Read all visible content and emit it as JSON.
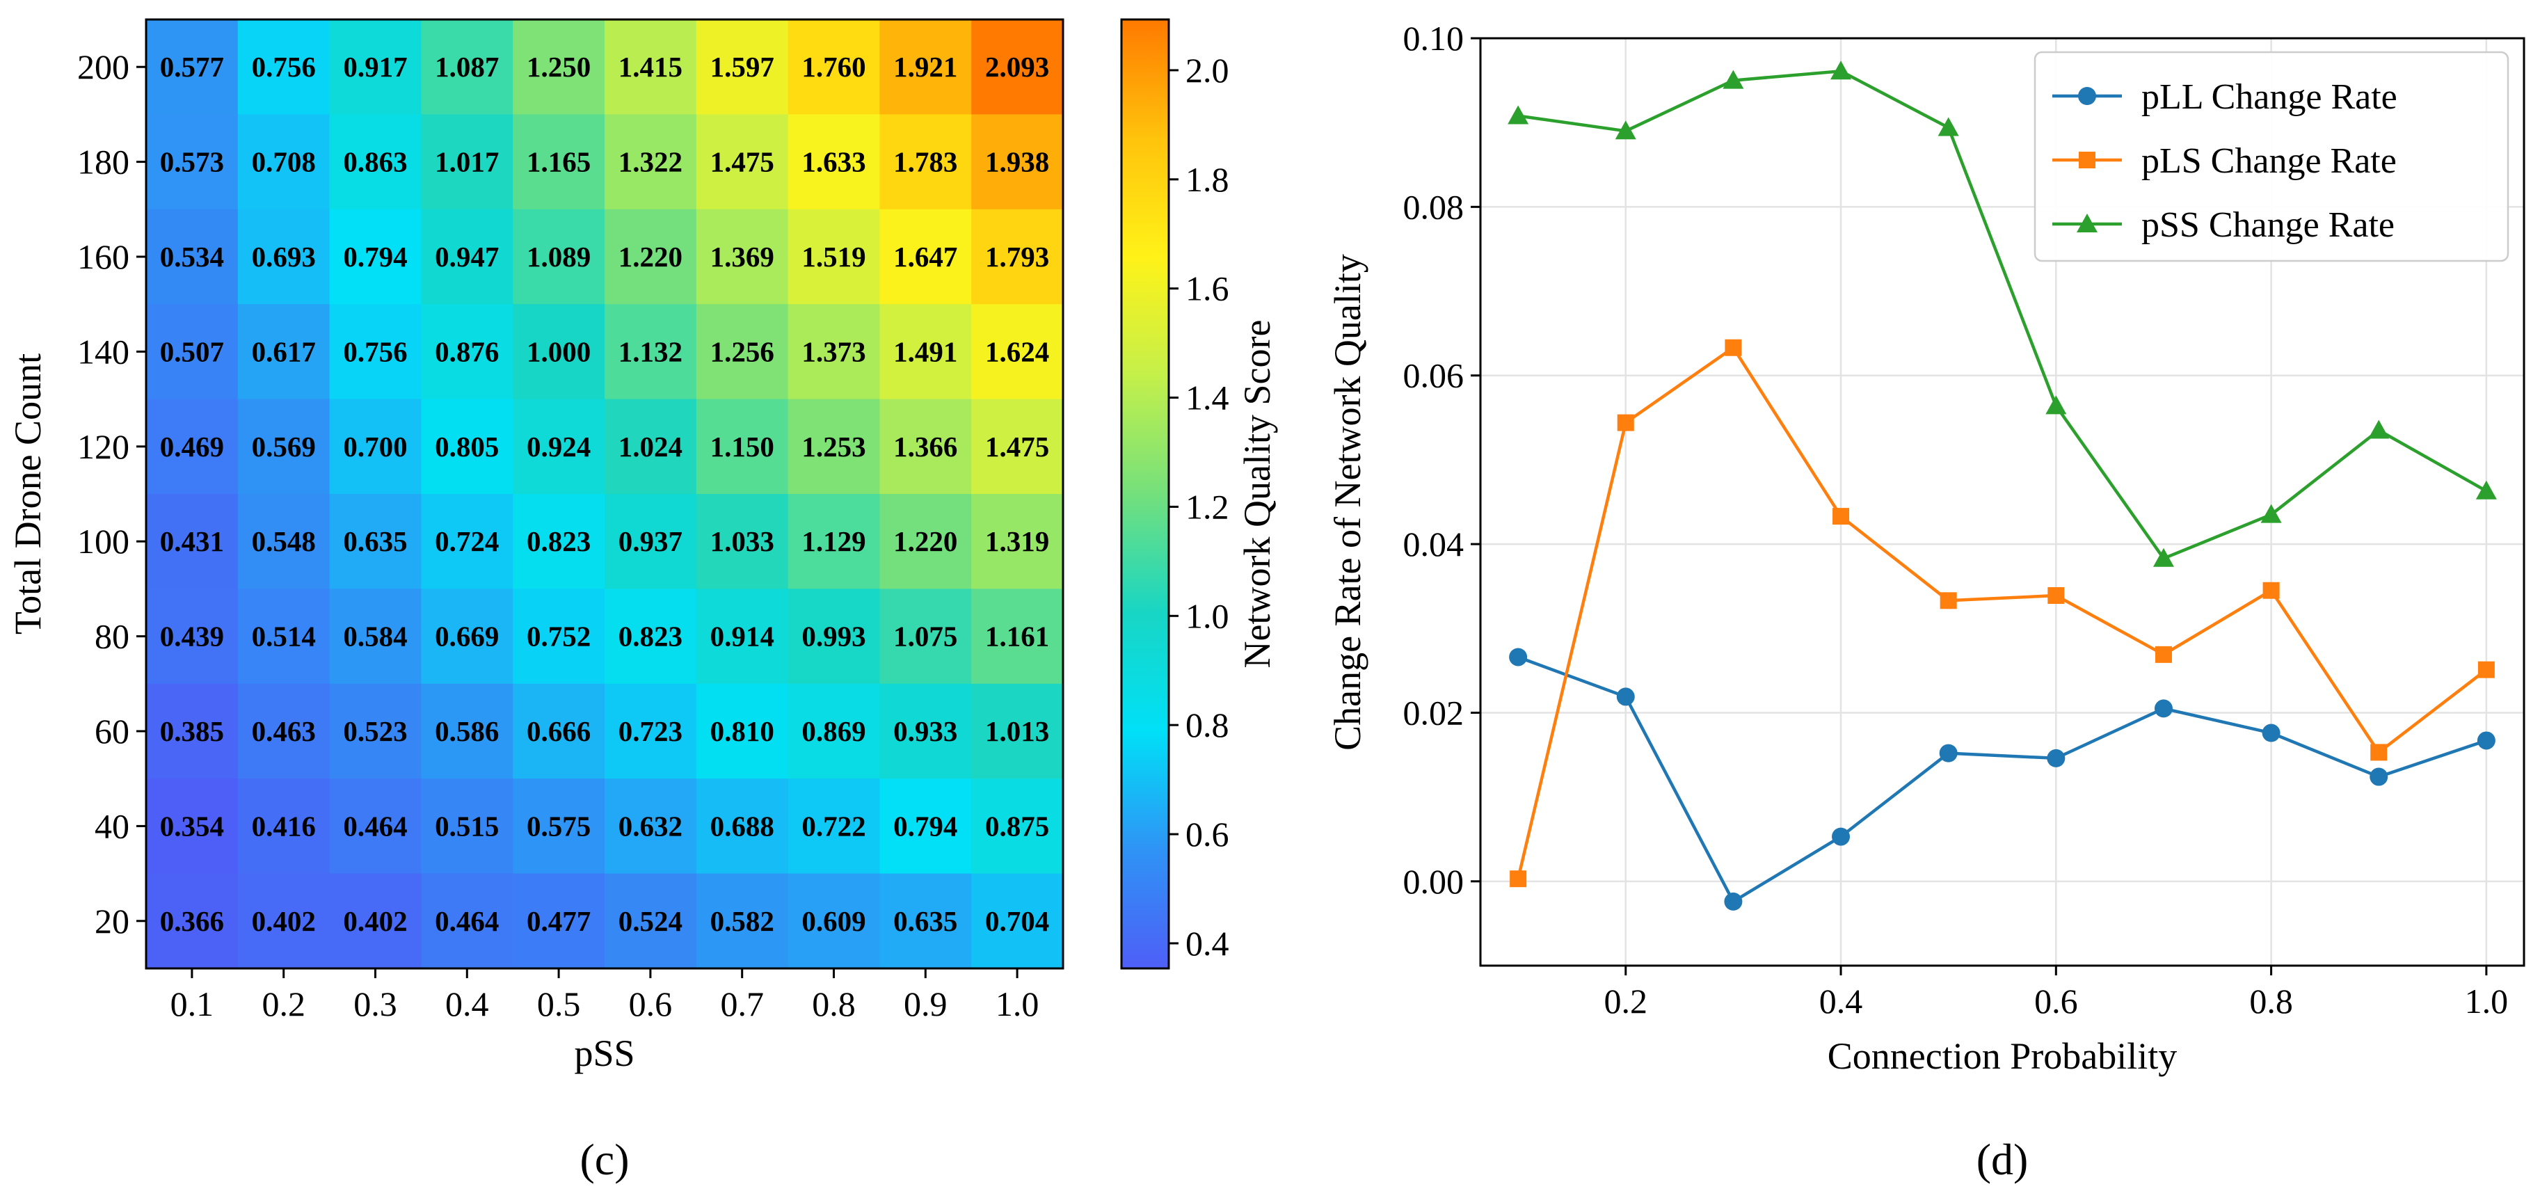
{
  "chart_data": [
    {
      "type": "heatmap",
      "panel_label": "(c)",
      "xlabel": "pSS",
      "ylabel": "Total Drone Count",
      "x": [
        "0.1",
        "0.2",
        "0.3",
        "0.4",
        "0.5",
        "0.6",
        "0.7",
        "0.8",
        "0.9",
        "1.0"
      ],
      "y": [
        "200",
        "180",
        "160",
        "140",
        "120",
        "100",
        "80",
        "60",
        "40",
        "20"
      ],
      "values": [
        [
          0.577,
          0.756,
          0.917,
          1.087,
          1.25,
          1.415,
          1.597,
          1.76,
          1.921,
          2.093
        ],
        [
          0.573,
          0.708,
          0.863,
          1.017,
          1.165,
          1.322,
          1.475,
          1.633,
          1.783,
          1.938
        ],
        [
          0.534,
          0.693,
          0.794,
          0.947,
          1.089,
          1.22,
          1.369,
          1.519,
          1.647,
          1.793
        ],
        [
          0.507,
          0.617,
          0.756,
          0.876,
          1.0,
          1.132,
          1.256,
          1.373,
          1.491,
          1.624
        ],
        [
          0.469,
          0.569,
          0.7,
          0.805,
          0.924,
          1.024,
          1.15,
          1.253,
          1.366,
          1.475
        ],
        [
          0.431,
          0.548,
          0.635,
          0.724,
          0.823,
          0.937,
          1.033,
          1.129,
          1.22,
          1.319
        ],
        [
          0.439,
          0.514,
          0.584,
          0.669,
          0.752,
          0.823,
          0.914,
          0.993,
          1.075,
          1.161
        ],
        [
          0.385,
          0.463,
          0.523,
          0.586,
          0.666,
          0.723,
          0.81,
          0.869,
          0.933,
          1.013
        ],
        [
          0.354,
          0.416,
          0.464,
          0.515,
          0.575,
          0.632,
          0.688,
          0.722,
          0.794,
          0.875
        ],
        [
          0.366,
          0.402,
          0.402,
          0.464,
          0.477,
          0.524,
          0.582,
          0.609,
          0.635,
          0.704
        ]
      ],
      "value_labels": [
        [
          "0.577",
          "0.756",
          "0.917",
          "1.087",
          "1.250",
          "1.415",
          "1.597",
          "1.760",
          "1.921",
          "2.093"
        ],
        [
          "0.573",
          "0.708",
          "0.863",
          "1.017",
          "1.165",
          "1.322",
          "1.475",
          "1.633",
          "1.783",
          "1.938"
        ],
        [
          "0.534",
          "0.693",
          "0.794",
          "0.947",
          "1.089",
          "1.220",
          "1.369",
          "1.519",
          "1.647",
          "1.793"
        ],
        [
          "0.507",
          "0.617",
          "0.756",
          "0.876",
          "1.000",
          "1.132",
          "1.256",
          "1.373",
          "1.491",
          "1.624"
        ],
        [
          "0.469",
          "0.569",
          "0.700",
          "0.805",
          "0.924",
          "1.024",
          "1.150",
          "1.253",
          "1.366",
          "1.475"
        ],
        [
          "0.431",
          "0.548",
          "0.635",
          "0.724",
          "0.823",
          "0.937",
          "1.033",
          "1.129",
          "1.220",
          "1.319"
        ],
        [
          "0.439",
          "0.514",
          "0.584",
          "0.669",
          "0.752",
          "0.823",
          "0.914",
          "0.993",
          "1.075",
          "1.161"
        ],
        [
          "0.385",
          "0.463",
          "0.523",
          "0.586",
          "0.666",
          "0.723",
          "0.810",
          "0.869",
          "0.933",
          "1.013"
        ],
        [
          "0.354",
          "0.416",
          "0.464",
          "0.515",
          "0.575",
          "0.632",
          "0.688",
          "0.722",
          "0.794",
          "0.875"
        ],
        [
          "0.366",
          "0.402",
          "0.402",
          "0.464",
          "0.477",
          "0.524",
          "0.582",
          "0.609",
          "0.635",
          "0.704"
        ]
      ],
      "colorbar": {
        "label": "Network Quality Score",
        "range": [
          0.354,
          2.093
        ],
        "ticks": [
          0.4,
          0.6,
          0.8,
          1.0,
          1.2,
          1.4,
          1.6,
          1.8,
          2.0
        ],
        "tick_labels": [
          "0.4",
          "0.6",
          "0.8",
          "1.0",
          "1.2",
          "1.4",
          "1.6",
          "1.8",
          "2.0"
        ],
        "colormap": [
          "#4e5ff7",
          "#2f93f5",
          "#00e0f7",
          "#18d6c4",
          "#74e07c",
          "#c4f04a",
          "#fff218",
          "#ffc30c",
          "#ff7a00"
        ]
      }
    },
    {
      "type": "line",
      "panel_label": "(d)",
      "xlabel": "Connection Probability",
      "ylabel": "Change Rate of Network Quality",
      "x": [
        0.1,
        0.2,
        0.3,
        0.4,
        0.5,
        0.6,
        0.7,
        0.8,
        0.9,
        1.0
      ],
      "xlim": [
        0.065,
        1.035
      ],
      "ylim": [
        -0.01,
        0.1
      ],
      "xticks": [
        0.2,
        0.4,
        0.6,
        0.8,
        1.0
      ],
      "xtick_labels": [
        "0.2",
        "0.4",
        "0.6",
        "0.8",
        "1.0"
      ],
      "yticks": [
        0.0,
        0.02,
        0.04,
        0.06,
        0.08,
        0.1
      ],
      "ytick_labels": [
        "0.00",
        "0.02",
        "0.04",
        "0.06",
        "0.08",
        "0.10"
      ],
      "grid": true,
      "legend_position": "top-right",
      "series": [
        {
          "name": "pLL Change Rate",
          "marker": "circle",
          "color": "#1f77b4",
          "values": [
            0.0266,
            0.0219,
            -0.0024,
            0.0053,
            0.0152,
            0.0146,
            0.0205,
            0.0176,
            0.0124,
            0.0167
          ]
        },
        {
          "name": "pLS Change Rate",
          "marker": "square",
          "color": "#ff7f0e",
          "values": [
            0.0003,
            0.0544,
            0.0633,
            0.0433,
            0.0333,
            0.0339,
            0.0269,
            0.0345,
            0.0153,
            0.0251
          ]
        },
        {
          "name": "pSS Change Rate",
          "marker": "triangle",
          "color": "#2ca02c",
          "values": [
            0.0908,
            0.089,
            0.095,
            0.0961,
            0.0894,
            0.0564,
            0.0383,
            0.0435,
            0.0535,
            0.0463
          ]
        }
      ]
    }
  ]
}
